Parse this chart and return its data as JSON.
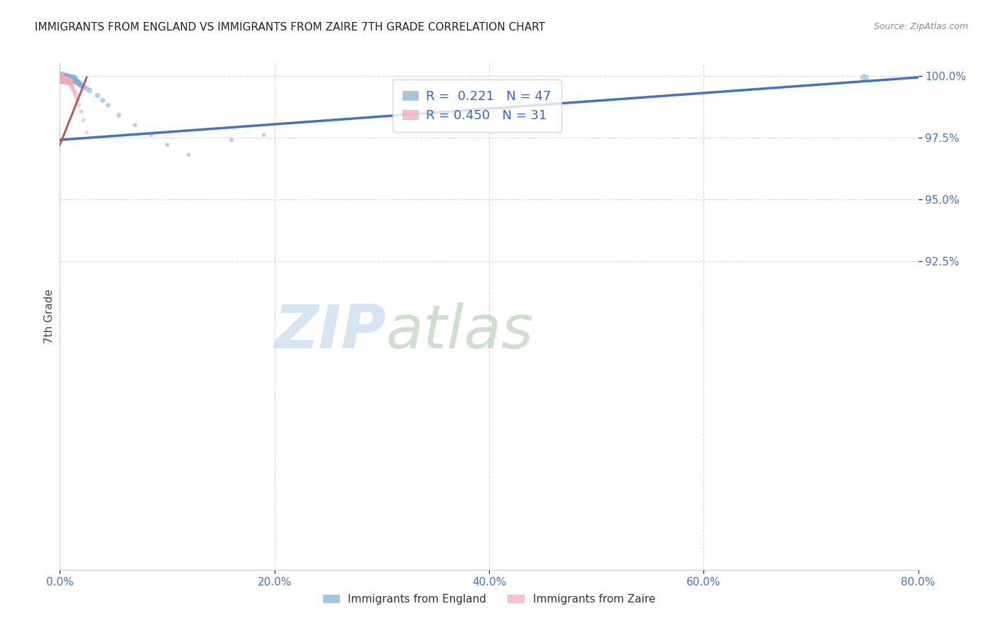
{
  "title": "IMMIGRANTS FROM ENGLAND VS IMMIGRANTS FROM ZAIRE 7TH GRADE CORRELATION CHART",
  "source": "Source: ZipAtlas.com",
  "ylabel": "7th Grade",
  "xlim": [
    0.0,
    0.8
  ],
  "ylim": [
    0.8,
    1.005
  ],
  "xtick_labels": [
    "0.0%",
    "",
    "",
    "",
    "",
    "20.0%",
    "",
    "",
    "",
    "",
    "40.0%",
    "",
    "",
    "",
    "",
    "60.0%",
    "",
    "",
    "",
    "",
    "80.0%"
  ],
  "xtick_values": [
    0.0,
    0.04,
    0.08,
    0.12,
    0.16,
    0.2,
    0.24,
    0.28,
    0.32,
    0.36,
    0.4,
    0.44,
    0.48,
    0.52,
    0.56,
    0.6,
    0.64,
    0.68,
    0.72,
    0.76,
    0.8
  ],
  "xtick_major_labels": [
    "0.0%",
    "20.0%",
    "40.0%",
    "60.0%",
    "80.0%"
  ],
  "xtick_major_values": [
    0.0,
    0.2,
    0.4,
    0.6,
    0.8
  ],
  "ytick_labels": [
    "92.5%",
    "95.0%",
    "97.5%",
    "100.0%"
  ],
  "ytick_values": [
    0.925,
    0.95,
    0.975,
    1.0
  ],
  "england_color": "#7bafd4",
  "zaire_color": "#f4a8b8",
  "england_R": 0.221,
  "england_N": 47,
  "zaire_R": 0.45,
  "zaire_N": 31,
  "england_line_color": "#4472c4",
  "zaire_line_color": "#c0504d",
  "watermark_zip": "ZIP",
  "watermark_atlas": "atlas",
  "legend_england": "Immigrants from England",
  "legend_zaire": "Immigrants from Zaire",
  "england_x": [
    0.002,
    0.002,
    0.002,
    0.002,
    0.004,
    0.004,
    0.005,
    0.005,
    0.006,
    0.006,
    0.007,
    0.007,
    0.007,
    0.008,
    0.008,
    0.008,
    0.009,
    0.009,
    0.01,
    0.01,
    0.011,
    0.011,
    0.012,
    0.012,
    0.013,
    0.013,
    0.014,
    0.015,
    0.016,
    0.017,
    0.018,
    0.019,
    0.02,
    0.022,
    0.025,
    0.028,
    0.035,
    0.04,
    0.045,
    0.055,
    0.07,
    0.085,
    0.1,
    0.12,
    0.16,
    0.19,
    0.75
  ],
  "england_y": [
    0.9995,
    0.999,
    0.9985,
    0.998,
    0.999,
    0.9985,
    0.9992,
    0.9987,
    0.9993,
    0.9988,
    0.9994,
    0.9989,
    0.9984,
    0.9992,
    0.9987,
    0.9982,
    0.999,
    0.9985,
    0.9988,
    0.9983,
    0.999,
    0.9985,
    0.9988,
    0.9983,
    0.999,
    0.9985,
    0.9982,
    0.9978,
    0.9975,
    0.9972,
    0.9968,
    0.9965,
    0.996,
    0.9955,
    0.9948,
    0.994,
    0.992,
    0.99,
    0.988,
    0.984,
    0.98,
    0.976,
    0.972,
    0.968,
    0.974,
    0.976,
    0.999
  ],
  "england_sizes": [
    120,
    80,
    60,
    50,
    80,
    60,
    70,
    55,
    65,
    52,
    60,
    50,
    42,
    55,
    48,
    40,
    52,
    44,
    48,
    40,
    50,
    42,
    48,
    40,
    50,
    42,
    40,
    38,
    36,
    34,
    32,
    30,
    30,
    28,
    26,
    24,
    22,
    20,
    18,
    16,
    14,
    13,
    12,
    11,
    12,
    11,
    60
  ],
  "zaire_x": [
    0.001,
    0.001,
    0.001,
    0.002,
    0.002,
    0.003,
    0.003,
    0.004,
    0.004,
    0.005,
    0.005,
    0.006,
    0.006,
    0.007,
    0.007,
    0.008,
    0.008,
    0.009,
    0.009,
    0.01,
    0.01,
    0.011,
    0.012,
    0.013,
    0.014,
    0.015,
    0.016,
    0.018,
    0.02,
    0.022,
    0.025
  ],
  "zaire_y": [
    0.9993,
    0.9988,
    0.9983,
    0.999,
    0.9985,
    0.9988,
    0.9982,
    0.9986,
    0.998,
    0.9985,
    0.9979,
    0.9984,
    0.9978,
    0.9982,
    0.9976,
    0.998,
    0.9974,
    0.9978,
    0.9972,
    0.9975,
    0.9969,
    0.996,
    0.995,
    0.994,
    0.993,
    0.9918,
    0.9905,
    0.988,
    0.9855,
    0.982,
    0.977
  ],
  "zaire_sizes": [
    70,
    55,
    44,
    60,
    48,
    52,
    42,
    50,
    40,
    48,
    38,
    46,
    36,
    44,
    34,
    42,
    32,
    40,
    30,
    38,
    28,
    26,
    24,
    22,
    20,
    18,
    16,
    14,
    13,
    12,
    11
  ],
  "eng_line_x0": 0.0,
  "eng_line_x1": 0.8,
  "eng_line_y0": 0.974,
  "eng_line_y1": 0.9993,
  "zaire_line_x0": 0.0,
  "zaire_line_x1": 0.025,
  "zaire_line_y0": 0.972,
  "zaire_line_y1": 0.9993
}
